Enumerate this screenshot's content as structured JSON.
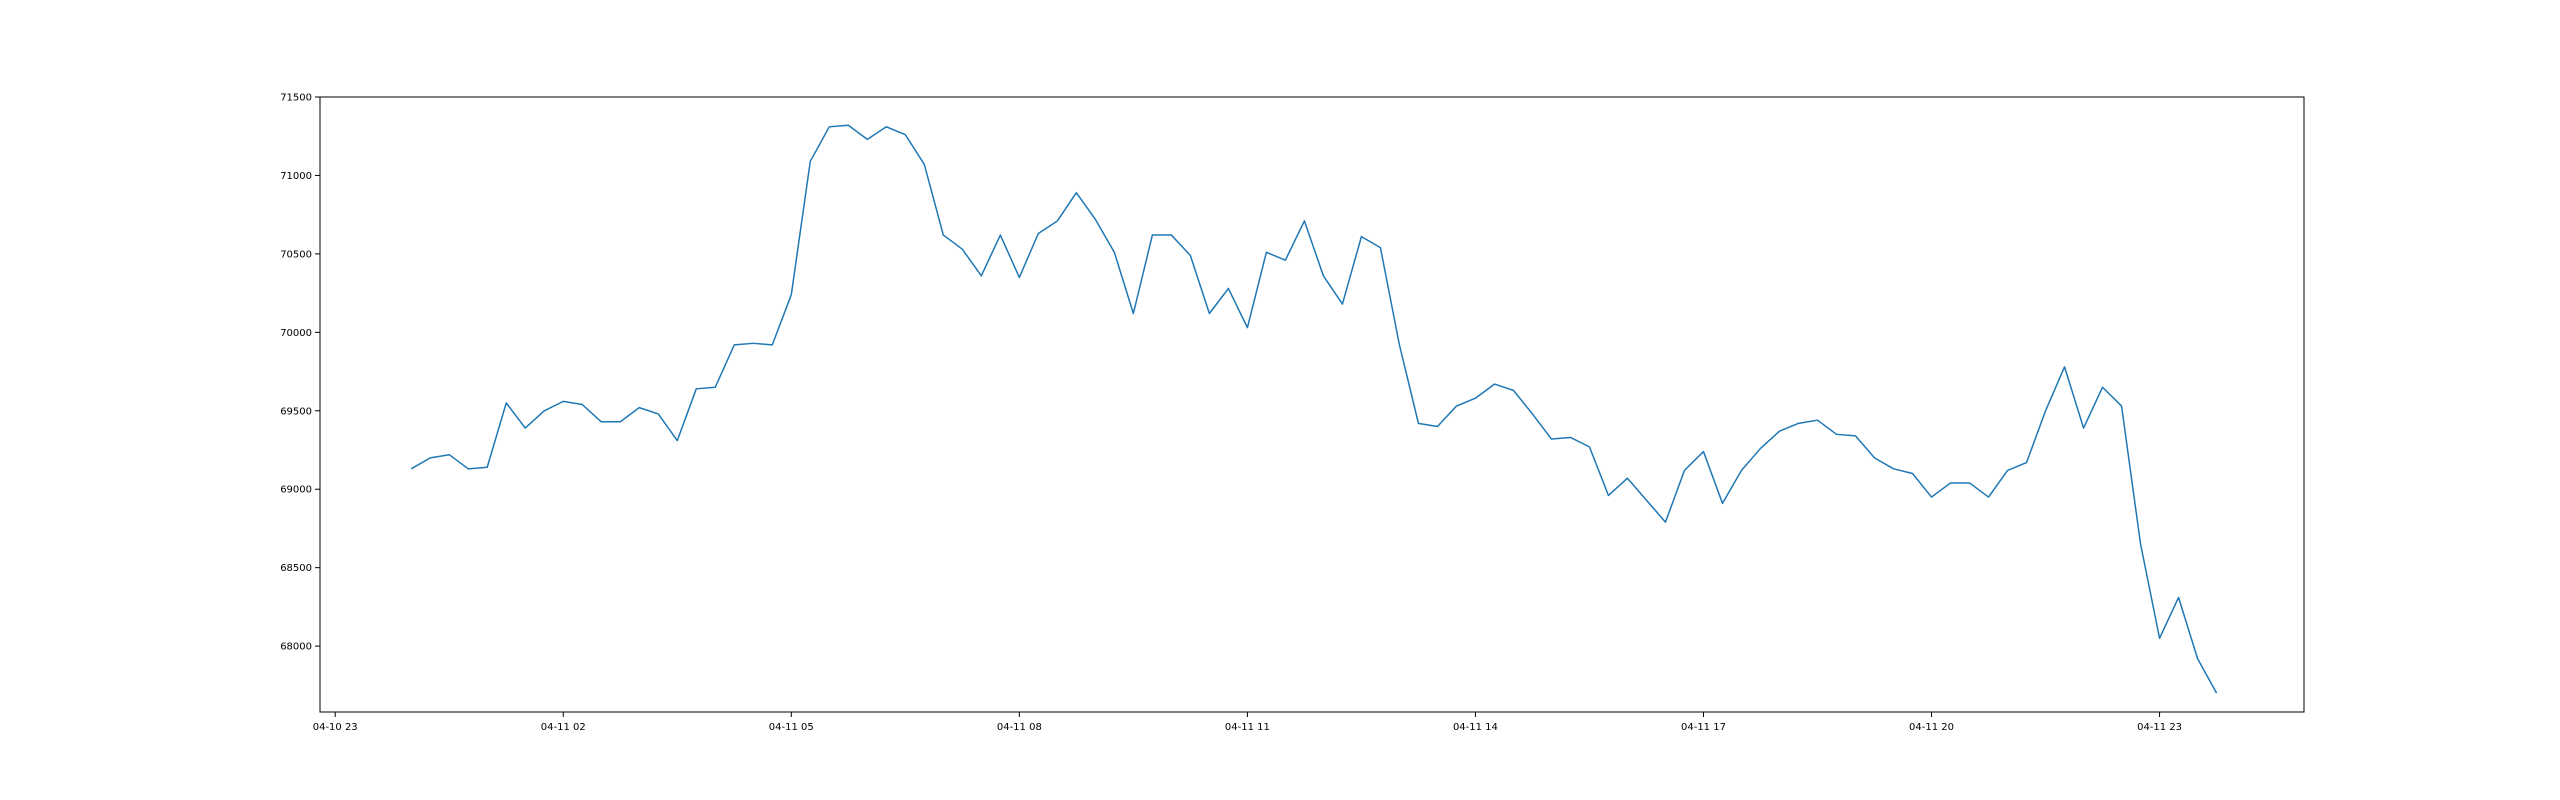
{
  "chart_data": {
    "type": "line",
    "title": "",
    "xlabel": "",
    "ylabel": "",
    "x_tick_labels": [
      "04-10 23",
      "04-11 02",
      "04-11 05",
      "04-11 08",
      "04-11 11",
      "04-11 14",
      "04-11 17",
      "04-11 20",
      "04-11 23"
    ],
    "x_ticks_hours": [
      0,
      3,
      6,
      9,
      12,
      15,
      18,
      21,
      24
    ],
    "xlim_hours": [
      -0.2,
      25.9
    ],
    "ylim": [
      67580,
      71500
    ],
    "y_ticks": [
      68000,
      68500,
      69000,
      69500,
      70000,
      70500,
      71000,
      71500
    ],
    "grid": false,
    "series": [
      {
        "color": "#1f77b4",
        "x_hours": [
          1.0,
          1.25,
          1.5,
          1.75,
          2.0,
          2.25,
          2.5,
          2.75,
          3.0,
          3.25,
          3.5,
          3.75,
          4.0,
          4.25,
          4.5,
          4.75,
          5.0,
          5.25,
          5.5,
          5.75,
          6.0,
          6.25,
          6.5,
          6.75,
          7.0,
          7.25,
          7.5,
          7.75,
          8.0,
          8.25,
          8.5,
          8.75,
          9.0,
          9.25,
          9.5,
          9.75,
          10.0,
          10.25,
          10.5,
          10.75,
          11.0,
          11.25,
          11.5,
          11.75,
          12.0,
          12.25,
          12.5,
          12.75,
          13.0,
          13.25,
          13.5,
          13.75,
          14.0,
          14.25,
          14.5,
          14.75,
          15.0,
          15.25,
          15.5,
          15.75,
          16.0,
          16.25,
          16.5,
          16.75,
          17.0,
          17.25,
          17.5,
          17.75,
          18.0,
          18.25,
          18.5,
          18.75,
          19.0,
          19.25,
          19.5,
          19.75,
          20.0,
          20.25,
          20.5,
          20.75,
          21.0,
          21.25,
          21.5,
          21.75,
          22.0,
          22.25,
          22.5,
          22.75,
          23.0,
          23.25,
          23.5,
          23.75,
          24.0,
          24.25,
          24.5,
          24.75
        ],
        "values": [
          69130,
          69200,
          69220,
          69130,
          69140,
          69550,
          69390,
          69500,
          69560,
          69540,
          69430,
          69430,
          69520,
          69480,
          69310,
          69640,
          69650,
          69920,
          69930,
          69920,
          70240,
          71090,
          71310,
          71320,
          71230,
          71310,
          71260,
          71070,
          70620,
          70530,
          70360,
          70620,
          70350,
          70630,
          70710,
          70890,
          70720,
          70510,
          70120,
          70620,
          70620,
          70490,
          70120,
          70280,
          70030,
          70510,
          70460,
          70710,
          70360,
          70180,
          70610,
          70540,
          69920,
          69420,
          69400,
          69530,
          69580,
          69670,
          69630,
          69480,
          69320,
          69330,
          69270,
          68960,
          69070,
          68930,
          68790,
          69120,
          69240,
          68910,
          69120,
          69260,
          69370,
          69420,
          69440,
          69350,
          69340,
          69200,
          69130,
          69100,
          68950,
          69040,
          69040,
          68950,
          69120,
          69170,
          69500,
          69780,
          69390,
          69650,
          69530,
          68650,
          68050,
          68310,
          67920,
          67700
        ]
      }
    ]
  }
}
